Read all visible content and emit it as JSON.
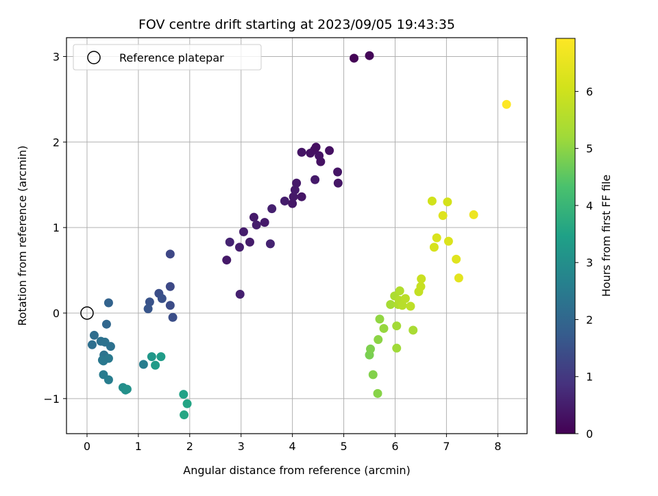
{
  "chart_data": {
    "type": "scatter",
    "title": "FOV centre drift starting at 2023/09/05 19:43:35",
    "xlabel": "Angular distance from reference (arcmin)",
    "ylabel": "Rotation from reference (arcmin)",
    "xlim": [
      -0.4,
      8.57
    ],
    "ylim": [
      -1.41,
      3.22
    ],
    "xticks": [
      0,
      1,
      2,
      3,
      4,
      5,
      6,
      7,
      8
    ],
    "yticks": [
      -1,
      0,
      1,
      2,
      3
    ],
    "xtick_labels": [
      "0",
      "1",
      "2",
      "3",
      "4",
      "5",
      "6",
      "7",
      "8"
    ],
    "ytick_labels": [
      "−1",
      "0",
      "1",
      "2",
      "3"
    ],
    "grid": true,
    "legend": {
      "placement": "top-left",
      "entries": [
        "Reference platepar"
      ]
    },
    "reference_point": {
      "x": 0,
      "y": 0
    },
    "colorbar": {
      "label": "Hours from first FF file",
      "colormap": "viridis",
      "range": [
        0,
        6.93
      ],
      "ticks": [
        0,
        1,
        2,
        3,
        4,
        5,
        6
      ],
      "tick_labels": [
        "0",
        "1",
        "2",
        "3",
        "4",
        "5",
        "6"
      ]
    },
    "series": [
      {
        "x": [
          5.2,
          5.5,
          2.72,
          2.98,
          3.05,
          2.97,
          3.17,
          3.25,
          3.3,
          3.46,
          3.57,
          3.6,
          3.85,
          4.0,
          4.02,
          4.05,
          4.08,
          4.18,
          4.18,
          4.35,
          4.43,
          4.46,
          4.52,
          4.55,
          4.72,
          4.88,
          4.89,
          4.44
        ],
        "y": [
          2.98,
          3.01,
          0.62,
          0.22,
          0.95,
          0.77,
          0.83,
          1.12,
          1.03,
          1.06,
          0.81,
          1.22,
          1.31,
          1.28,
          1.36,
          1.44,
          1.52,
          1.36,
          1.88,
          1.87,
          1.91,
          1.94,
          1.84,
          1.77,
          1.9,
          1.65,
          1.52,
          1.56
        ],
        "t": [
          0.05,
          0.08,
          0.42,
          0.55,
          0.5,
          0.52,
          0.48,
          0.45,
          0.5,
          0.45,
          0.6,
          0.55,
          0.5,
          0.4,
          0.42,
          0.45,
          0.43,
          0.38,
          0.35,
          0.3,
          0.28,
          0.25,
          0.32,
          0.3,
          0.28,
          0.35,
          0.38,
          0.45
        ]
      },
      {
        "x": [
          2.78,
          1.62,
          1.62,
          1.4,
          1.46,
          1.62,
          1.67,
          1.22,
          1.19,
          1.1,
          0.42,
          0.38,
          0.1,
          0.14,
          0.27,
          0.33,
          0.35,
          0.46,
          0.3,
          0.32,
          0.42,
          0.32,
          0.42,
          0.7,
          0.75,
          0.78,
          1.26,
          1.33,
          1.44,
          1.88,
          1.95,
          1.89
        ],
        "y": [
          0.83,
          0.69,
          0.31,
          0.23,
          0.17,
          0.09,
          -0.05,
          0.13,
          0.05,
          -0.6,
          0.12,
          -0.13,
          -0.37,
          -0.26,
          -0.33,
          -0.49,
          -0.34,
          -0.39,
          -0.55,
          -0.72,
          -0.53,
          -0.56,
          -0.78,
          -0.87,
          -0.9,
          -0.89,
          -0.51,
          -0.61,
          -0.51,
          -0.95,
          -1.06,
          -1.19
        ],
        "t": [
          0.6,
          1.3,
          1.35,
          1.45,
          1.5,
          1.4,
          1.45,
          1.55,
          1.6,
          2.55,
          1.9,
          2.0,
          2.2,
          2.15,
          2.25,
          2.3,
          2.28,
          2.25,
          2.4,
          2.5,
          2.45,
          2.42,
          2.55,
          2.95,
          3.0,
          3.05,
          3.2,
          3.3,
          3.35,
          3.5,
          3.55,
          3.6
        ]
      },
      {
        "x": [
          5.5,
          5.52,
          5.57,
          5.67,
          5.66,
          5.7,
          5.78,
          5.91,
          5.99,
          6.03,
          6.06,
          6.09,
          6.03,
          6.08,
          6.14,
          6.2,
          6.3,
          6.35,
          6.46,
          6.5,
          6.51,
          6.72,
          6.76,
          6.81,
          6.93,
          7.02,
          7.04,
          7.19,
          7.24,
          7.53,
          8.17
        ],
        "y": [
          -0.49,
          -0.42,
          -0.72,
          -0.31,
          -0.94,
          -0.07,
          -0.18,
          0.1,
          0.2,
          -0.15,
          0.1,
          0.26,
          -0.41,
          0.15,
          0.09,
          0.17,
          0.08,
          -0.2,
          0.25,
          0.31,
          0.4,
          1.31,
          0.77,
          0.88,
          1.14,
          1.3,
          0.84,
          0.63,
          0.41,
          1.15,
          2.44
        ],
        "t": [
          4.8,
          4.85,
          4.9,
          5.0,
          4.95,
          5.05,
          5.1,
          5.3,
          5.4,
          5.25,
          5.45,
          5.5,
          5.2,
          5.55,
          5.6,
          5.65,
          5.7,
          5.35,
          5.8,
          5.85,
          5.9,
          6.05,
          6.15,
          6.2,
          6.3,
          6.1,
          6.25,
          6.35,
          6.4,
          6.6,
          6.93
        ]
      }
    ]
  }
}
